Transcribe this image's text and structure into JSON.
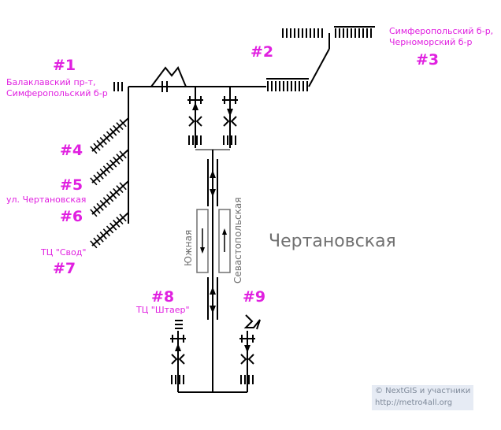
{
  "station_name": "Чертановская",
  "exits": [
    {
      "number": "#1",
      "label_lines": [
        "Балаклавский пр-т,",
        "Симферопольский б-р"
      ]
    },
    {
      "number": "#2",
      "label_lines": []
    },
    {
      "number": "#3",
      "label_lines": [
        "Симферопольский б-р,",
        "Черноморский б-р"
      ]
    },
    {
      "number": "#4",
      "label_lines": []
    },
    {
      "number": "#5",
      "label_lines": []
    },
    {
      "number": "#6",
      "label_lines": [
        "ул. Чертановская"
      ]
    },
    {
      "number": "#7",
      "label_lines": [
        "ТЦ \"Свод\""
      ]
    },
    {
      "number": "#8",
      "label_lines": [
        "ТЦ \"Штаер\""
      ]
    },
    {
      "number": "#9",
      "label_lines": []
    }
  ],
  "platforms": {
    "left": "Южная",
    "right": "Севастопольская"
  },
  "credits": {
    "line1": "© NextGIS и участники",
    "line2": "http://metro4all.org"
  },
  "colors": {
    "exit_label": "#e020e0",
    "lines": "#000000",
    "station_text": "#707070"
  }
}
